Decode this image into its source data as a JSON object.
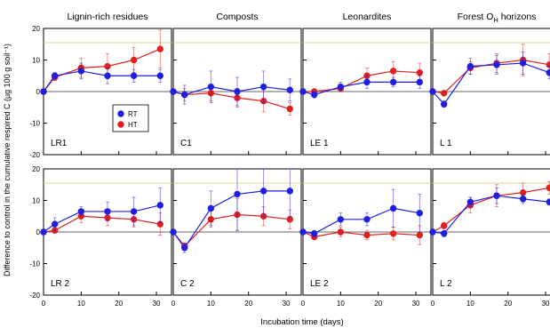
{
  "figure": {
    "ylabel": "Difference to control in the cumulative respired C (µg 100 g soil⁻¹)",
    "xlabel": "Incubation time (days)",
    "column_titles": [
      "Lignin-rich residues",
      "Composts",
      "Leonardites",
      "Forest O"
    ],
    "last_title_subscript": "H",
    "last_title_suffix": " horizons",
    "legend": [
      {
        "label": "RT",
        "color": "#1f1fe0"
      },
      {
        "label": "HT",
        "color": "#e01f1f"
      }
    ]
  },
  "chart_data": {
    "type": "line",
    "x_ticks": [
      0,
      10,
      20,
      30
    ],
    "xlim": [
      0,
      34
    ],
    "ylim": [
      -20,
      20
    ],
    "y_ticks": [
      -20,
      -10,
      0,
      10,
      20
    ],
    "threshold_y": 15.5,
    "threshold_color": "#d9d88a",
    "x": [
      0,
      3,
      10,
      17,
      24,
      31
    ],
    "series_colors": {
      "RT": "#1f1fe0",
      "HT": "#e01f1f"
    },
    "panels": [
      {
        "label": "LR1",
        "series": [
          {
            "name": "RT",
            "values": [
              0,
              5,
              6.5,
              5,
              5,
              5
            ],
            "errors": [
              0,
              1,
              2.5,
              2.5,
              2,
              2
            ]
          },
          {
            "name": "HT",
            "values": [
              0,
              4.5,
              7.5,
              8,
              10,
              13.5
            ],
            "errors": [
              0,
              1,
              3,
              4,
              4,
              6
            ]
          }
        ]
      },
      {
        "label": "C1",
        "series": [
          {
            "name": "RT",
            "values": [
              0,
              -1,
              1.5,
              0,
              1.5,
              0.5
            ],
            "errors": [
              0,
              3,
              5,
              4.5,
              5,
              3.5
            ]
          },
          {
            "name": "HT",
            "values": [
              0,
              -1,
              -0.5,
              -2,
              -3,
              -5.5
            ],
            "errors": [
              0,
              2,
              2.5,
              3,
              3.5,
              2
            ]
          }
        ]
      },
      {
        "label": "LE 1",
        "series": [
          {
            "name": "RT",
            "values": [
              0,
              -1,
              1.5,
              3,
              3,
              3
            ],
            "errors": [
              0,
              1,
              1.5,
              2,
              1.5,
              2
            ]
          },
          {
            "name": "HT",
            "values": [
              0,
              0,
              1,
              5,
              6.5,
              6
            ],
            "errors": [
              0,
              0.5,
              1,
              2.5,
              3,
              3
            ]
          }
        ]
      },
      {
        "label": "L 1",
        "series": [
          {
            "name": "RT",
            "values": [
              0,
              -4,
              8,
              8.5,
              9,
              6
            ],
            "errors": [
              0,
              1,
              2.5,
              3,
              3.5,
              2
            ]
          },
          {
            "name": "HT",
            "values": [
              0,
              -0.5,
              7.5,
              9,
              10,
              8.5
            ],
            "errors": [
              0,
              0.5,
              2,
              3,
              5,
              3.5
            ]
          }
        ]
      },
      {
        "label": "LR 2",
        "series": [
          {
            "name": "RT",
            "values": [
              0,
              2.5,
              6.5,
              6.5,
              6.5,
              8.5
            ],
            "errors": [
              0,
              2,
              1.5,
              3,
              4.5,
              5.5
            ]
          },
          {
            "name": "HT",
            "values": [
              0,
              0.5,
              5,
              4.5,
              4,
              2.5
            ],
            "errors": [
              0,
              0.5,
              2,
              2.5,
              2.5,
              3.5
            ]
          }
        ]
      },
      {
        "label": "C 2",
        "series": [
          {
            "name": "RT",
            "values": [
              0,
              -5,
              7.5,
              12,
              13,
              13
            ],
            "errors": [
              0,
              1.5,
              5.5,
              11.5,
              8,
              8
            ]
          },
          {
            "name": "HT",
            "values": [
              0,
              -4.5,
              4,
              5.5,
              5,
              4
            ],
            "errors": [
              0,
              1,
              2.5,
              5,
              3,
              3
            ]
          }
        ]
      },
      {
        "label": "LE 2",
        "series": [
          {
            "name": "RT",
            "values": [
              0,
              -0.5,
              4,
              4,
              7.5,
              6
            ],
            "errors": [
              0,
              1,
              2,
              2,
              6,
              6
            ]
          },
          {
            "name": "HT",
            "values": [
              0,
              -1.5,
              0,
              -1,
              -0.5,
              -1
            ],
            "errors": [
              0,
              1,
              1.5,
              1.5,
              2,
              3
            ]
          }
        ]
      },
      {
        "label": "L 2",
        "series": [
          {
            "name": "RT",
            "values": [
              0,
              -0.5,
              9.5,
              11.5,
              10.5,
              9.5
            ],
            "errors": [
              0,
              1,
              1.5,
              2.5,
              1.5,
              1
            ]
          },
          {
            "name": "HT",
            "values": [
              0,
              2,
              8.5,
              11.5,
              12.5,
              14
            ],
            "errors": [
              0,
              1,
              2.5,
              3.5,
              3,
              2
            ]
          }
        ]
      }
    ]
  }
}
